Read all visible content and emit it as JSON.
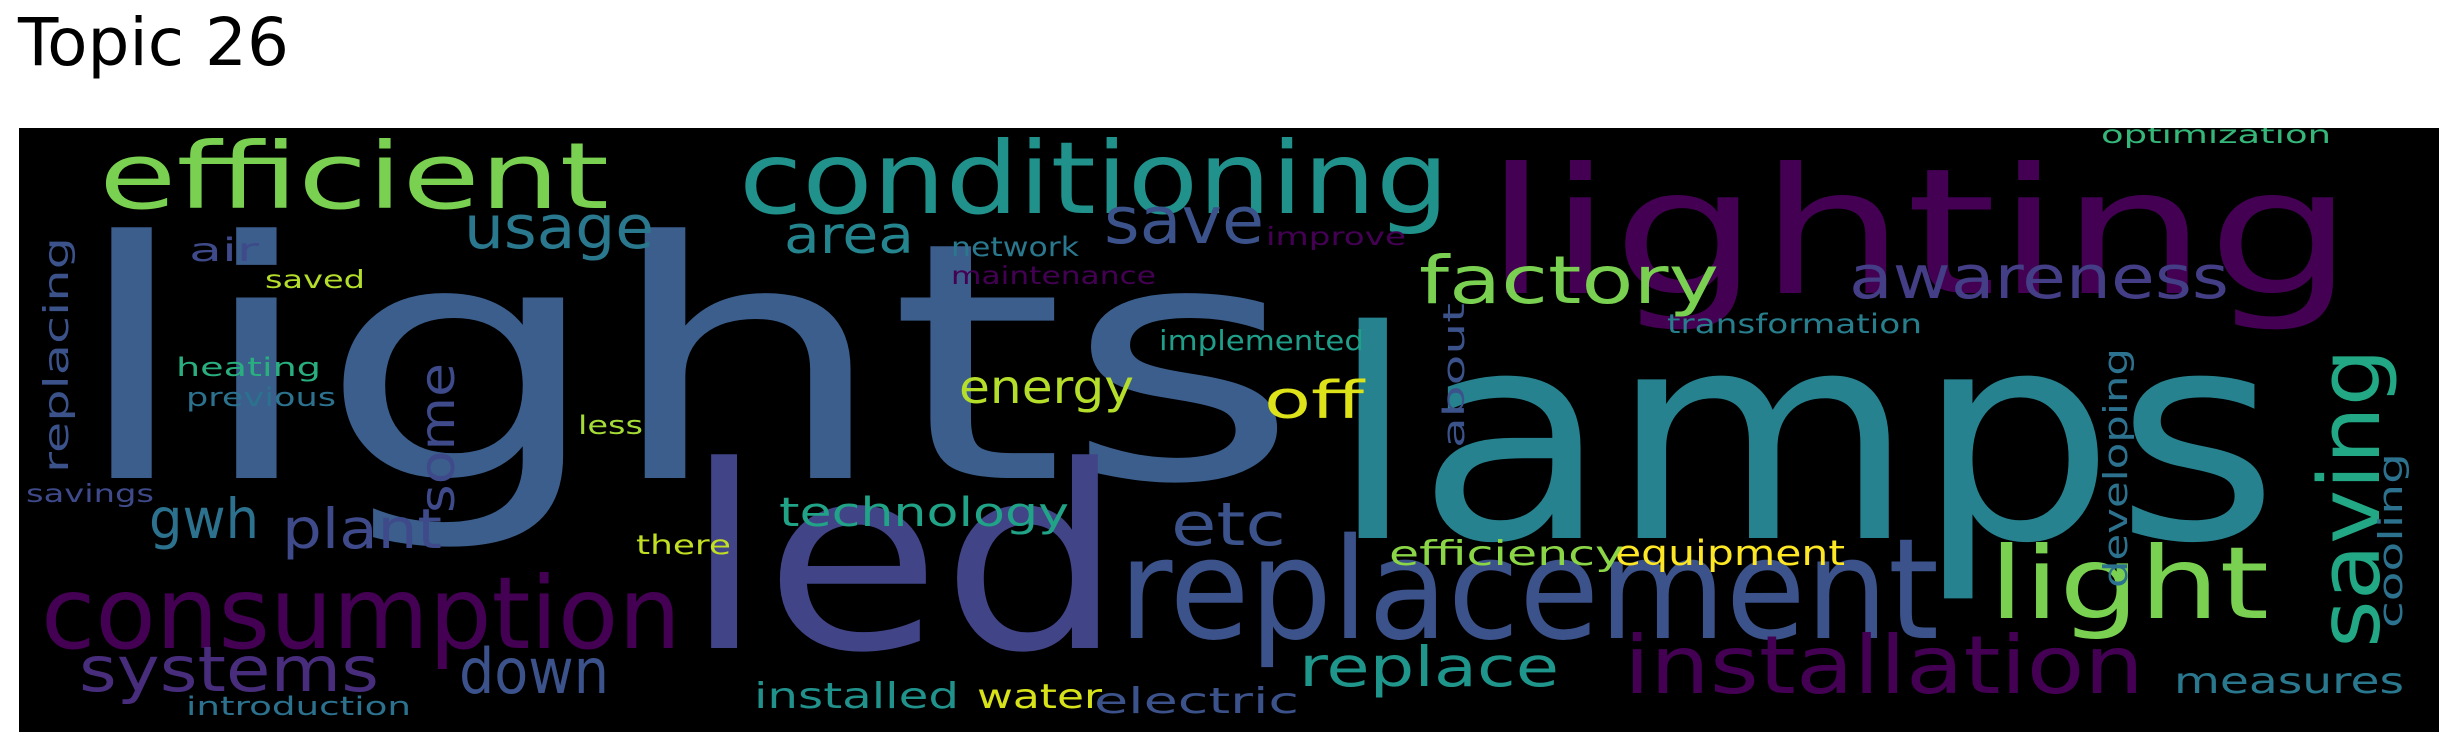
{
  "title": "Topic 26",
  "words": [
    {
      "text": "lights",
      "color": "#3b5e8c"
    },
    {
      "text": "lamps",
      "color": "#26828e"
    },
    {
      "text": "lighting",
      "color": "#440154"
    },
    {
      "text": "led",
      "color": "#414487"
    },
    {
      "text": "replacement",
      "color": "#3b528b"
    },
    {
      "text": "conditioning",
      "color": "#21918c"
    },
    {
      "text": "consumption",
      "color": "#440154"
    },
    {
      "text": "efficient",
      "color": "#7ad151"
    },
    {
      "text": "installation",
      "color": "#440154"
    },
    {
      "text": "saving",
      "color": "#22a884"
    },
    {
      "text": "light",
      "color": "#7ad151"
    },
    {
      "text": "factory",
      "color": "#7ad151"
    },
    {
      "text": "awareness",
      "color": "#433e85"
    },
    {
      "text": "usage",
      "color": "#2a788e"
    },
    {
      "text": "save",
      "color": "#3b528b"
    },
    {
      "text": "systems",
      "color": "#472d7b"
    },
    {
      "text": "down",
      "color": "#3b528b"
    },
    {
      "text": "replace",
      "color": "#1f968b"
    },
    {
      "text": "plant",
      "color": "#3e4a89"
    },
    {
      "text": "etc",
      "color": "#3b528b"
    },
    {
      "text": "gwh",
      "color": "#2c728e"
    },
    {
      "text": "area",
      "color": "#25858e"
    },
    {
      "text": "off",
      "color": "#dde318"
    },
    {
      "text": "energy",
      "color": "#b5de2b"
    },
    {
      "text": "some",
      "color": "#3e4a89"
    },
    {
      "text": "technology",
      "color": "#20a386"
    },
    {
      "text": "measures",
      "color": "#2a788e"
    },
    {
      "text": "developing",
      "color": "#2c728e"
    },
    {
      "text": "cooling",
      "color": "#2c728e"
    },
    {
      "text": "equipment",
      "color": "#fde725"
    },
    {
      "text": "efficiency",
      "color": "#8bd646"
    },
    {
      "text": "installed",
      "color": "#21918c"
    },
    {
      "text": "water",
      "color": "#d8e219"
    },
    {
      "text": "electric",
      "color": "#3b528b"
    },
    {
      "text": "air",
      "color": "#3e4a89"
    },
    {
      "text": "replacing",
      "color": "#3b528b"
    },
    {
      "text": "about",
      "color": "#3b528b"
    },
    {
      "text": "implemented",
      "color": "#1f9e89"
    },
    {
      "text": "transformation",
      "color": "#277f8e"
    },
    {
      "text": "network",
      "color": "#2a788e"
    },
    {
      "text": "maintenance",
      "color": "#440154"
    },
    {
      "text": "improve",
      "color": "#440154"
    },
    {
      "text": "optimization",
      "color": "#35b779"
    },
    {
      "text": "heating",
      "color": "#29af7f"
    },
    {
      "text": "previous",
      "color": "#2c728e"
    },
    {
      "text": "saved",
      "color": "#b5de2b"
    },
    {
      "text": "less",
      "color": "#a5db36"
    },
    {
      "text": "savings",
      "color": "#3e4a89"
    },
    {
      "text": "there",
      "color": "#c2df23"
    },
    {
      "text": "introduction",
      "color": "#2c728e"
    }
  ]
}
